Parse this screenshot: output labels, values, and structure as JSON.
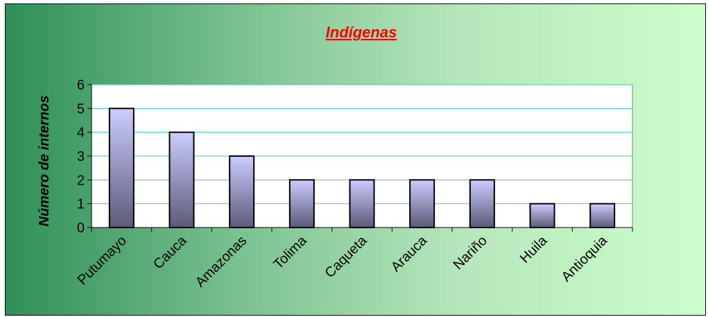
{
  "chart_data": {
    "type": "bar",
    "title": "Indígenas",
    "xlabel": "",
    "ylabel": "Número de internos",
    "categories": [
      "Putumayo",
      "Cauca",
      "Amazonas",
      "Tolima",
      "Caqueta",
      "Arauca",
      "Nariño",
      "Huila",
      "Antioquia"
    ],
    "values": [
      5,
      4,
      3,
      2,
      2,
      2,
      2,
      1,
      1
    ],
    "ylim": [
      0,
      6
    ],
    "yticks": [
      0,
      1,
      2,
      3,
      4,
      5,
      6
    ],
    "grid": true,
    "legend": "none",
    "colors": {
      "title": "#ff0000",
      "bar_top": "#ccccff",
      "bar_bottom": "#5a5a78",
      "gridline": "#33cccc",
      "plot_bg": "#ffffff",
      "axis": "#808080"
    }
  }
}
